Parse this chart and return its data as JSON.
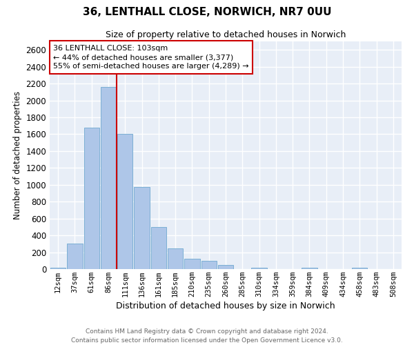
{
  "title": "36, LENTHALL CLOSE, NORWICH, NR7 0UU",
  "subtitle": "Size of property relative to detached houses in Norwich",
  "xlabel": "Distribution of detached houses by size in Norwich",
  "ylabel": "Number of detached properties",
  "bar_color": "#aec6e8",
  "bar_edge_color": "#7bafd4",
  "bg_color": "#e8eef7",
  "grid_color": "#ffffff",
  "annotation_box_color": "#cc0000",
  "vline_color": "#cc0000",
  "annotation_title": "36 LENTHALL CLOSE: 103sqm",
  "annotation_line1": "← 44% of detached houses are smaller (3,377)",
  "annotation_line2": "55% of semi-detached houses are larger (4,289) →",
  "categories": [
    "12sqm",
    "37sqm",
    "61sqm",
    "86sqm",
    "111sqm",
    "136sqm",
    "161sqm",
    "185sqm",
    "210sqm",
    "235sqm",
    "260sqm",
    "285sqm",
    "310sqm",
    "334sqm",
    "359sqm",
    "384sqm",
    "409sqm",
    "434sqm",
    "458sqm",
    "483sqm",
    "508sqm"
  ],
  "values": [
    20,
    300,
    1680,
    2160,
    1600,
    970,
    500,
    248,
    122,
    100,
    48,
    0,
    20,
    0,
    0,
    20,
    0,
    0,
    20,
    0,
    0
  ],
  "ylim": [
    0,
    2700
  ],
  "yticks": [
    0,
    200,
    400,
    600,
    800,
    1000,
    1200,
    1400,
    1600,
    1800,
    2000,
    2200,
    2400,
    2600
  ],
  "vline_pos": 3.5,
  "footer_line1": "Contains HM Land Registry data © Crown copyright and database right 2024.",
  "footer_line2": "Contains public sector information licensed under the Open Government Licence v3.0."
}
